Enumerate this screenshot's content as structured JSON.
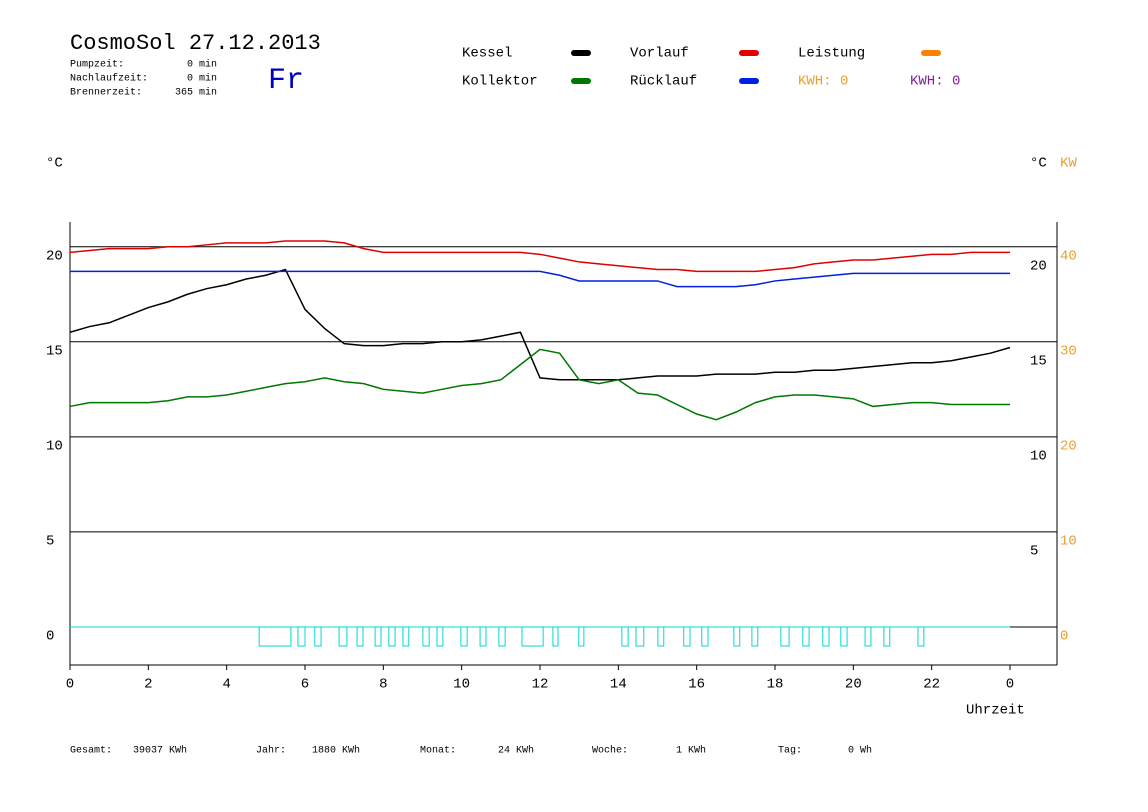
{
  "header": {
    "title": "CosmoSol 27.12.2013",
    "weekday": "Fr",
    "stats": [
      {
        "label": "Pumpzeit:",
        "value": "0 min"
      },
      {
        "label": "Nachlaufzeit:",
        "value": "0 min"
      },
      {
        "label": "Brennerzeit:",
        "value": "365 min"
      }
    ]
  },
  "footer": [
    {
      "label": "Gesamt:",
      "value": "39037 KWh"
    },
    {
      "label": "Jahr:",
      "value": "1880 KWh"
    },
    {
      "label": "Monat:",
      "value": "24 KWh"
    },
    {
      "label": "Woche:",
      "value": "1 KWh"
    },
    {
      "label": "Tag:",
      "value": "0 Wh"
    }
  ],
  "chart_data": {
    "type": "line",
    "y_label": "°C",
    "y2_label": "°C",
    "y3_label": "KW",
    "x_label": "Uhrzeit",
    "xlim": [
      0,
      25.2
    ],
    "xticks": [
      0,
      2,
      4,
      6,
      8,
      10,
      12,
      14,
      16,
      18,
      20,
      22,
      {
        "value": 24,
        "label": "0"
      }
    ],
    "ylim": [
      -2,
      21.3
    ],
    "yticks": [
      0,
      5,
      10,
      15,
      20
    ],
    "y_right_ticks": [
      5,
      10,
      15,
      20
    ],
    "y3lim": [
      -4,
      42.6
    ],
    "y3ticks": [
      0,
      10,
      20,
      30,
      40
    ],
    "y3color": "#e8a030",
    "grid": true,
    "x": [
      0,
      0.5,
      1,
      1.5,
      2,
      2.5,
      3,
      3.5,
      4,
      4.5,
      5,
      5.5,
      6,
      6.5,
      7,
      7.5,
      8,
      8.5,
      9,
      9.5,
      10,
      10.5,
      11,
      11.5,
      12,
      12.5,
      13,
      13.5,
      14,
      14.5,
      15,
      15.5,
      16,
      16.5,
      17,
      17.5,
      18,
      18.5,
      19,
      19.5,
      20,
      20.5,
      21,
      21.5,
      22,
      22.5,
      23,
      23.5,
      24
    ],
    "series": [
      {
        "name": "Kessel",
        "color": "#000000",
        "values": [
          15.5,
          15.8,
          16.0,
          16.4,
          16.8,
          17.1,
          17.5,
          17.8,
          18.0,
          18.3,
          18.5,
          18.8,
          16.7,
          15.7,
          14.9,
          14.8,
          14.8,
          14.9,
          14.9,
          15.0,
          15.0,
          15.1,
          15.3,
          15.5,
          13.1,
          13.0,
          13.0,
          13.0,
          13.0,
          13.1,
          13.2,
          13.2,
          13.2,
          13.3,
          13.3,
          13.3,
          13.4,
          13.4,
          13.5,
          13.5,
          13.6,
          13.7,
          13.8,
          13.9,
          13.9,
          14.0,
          14.2,
          14.4,
          14.7
        ]
      },
      {
        "name": "Vorlauf",
        "color": "#e00000",
        "values": [
          19.7,
          19.8,
          19.9,
          19.9,
          19.9,
          20.0,
          20.0,
          20.1,
          20.2,
          20.2,
          20.2,
          20.3,
          20.3,
          20.3,
          20.2,
          19.9,
          19.7,
          19.7,
          19.7,
          19.7,
          19.7,
          19.7,
          19.7,
          19.7,
          19.6,
          19.4,
          19.2,
          19.1,
          19.0,
          18.9,
          18.8,
          18.8,
          18.7,
          18.7,
          18.7,
          18.7,
          18.8,
          18.9,
          19.1,
          19.2,
          19.3,
          19.3,
          19.4,
          19.5,
          19.6,
          19.6,
          19.7,
          19.7,
          19.7
        ]
      },
      {
        "name": "Kollektor",
        "color": "#007800",
        "values": [
          11.6,
          11.8,
          11.8,
          11.8,
          11.8,
          11.9,
          12.1,
          12.1,
          12.2,
          12.4,
          12.6,
          12.8,
          12.9,
          13.1,
          12.9,
          12.8,
          12.5,
          12.4,
          12.3,
          12.5,
          12.7,
          12.8,
          13.0,
          13.8,
          14.6,
          14.4,
          13.0,
          12.8,
          13.0,
          12.3,
          12.2,
          11.7,
          11.2,
          10.9,
          11.3,
          11.8,
          12.1,
          12.2,
          12.2,
          12.1,
          12.0,
          11.6,
          11.7,
          11.8,
          11.8,
          11.7,
          11.7,
          11.7,
          11.7
        ]
      },
      {
        "name": "Rücklauf",
        "color": "#0020e0",
        "values": [
          18.7,
          18.7,
          18.7,
          18.7,
          18.7,
          18.7,
          18.7,
          18.7,
          18.7,
          18.7,
          18.7,
          18.7,
          18.7,
          18.7,
          18.7,
          18.7,
          18.7,
          18.7,
          18.7,
          18.7,
          18.7,
          18.7,
          18.7,
          18.7,
          18.7,
          18.5,
          18.2,
          18.2,
          18.2,
          18.2,
          18.2,
          17.9,
          17.9,
          17.9,
          17.9,
          18.0,
          18.2,
          18.3,
          18.4,
          18.5,
          18.6,
          18.6,
          18.6,
          18.6,
          18.6,
          18.6,
          18.6,
          18.6,
          18.6
        ]
      }
    ],
    "legend_extra": [
      {
        "name": "Leistung",
        "color": "#ff8000"
      }
    ],
    "kwh": [
      {
        "label": "KWH: 0",
        "color": "#e8a030"
      },
      {
        "label": "KWH: 0",
        "color": "#8020a0"
      }
    ],
    "pump": {
      "color": "#00d8d8",
      "low": -1,
      "intervals": [
        [
          4.83,
          5.64
        ],
        [
          5.82,
          6.0
        ],
        [
          6.25,
          6.41
        ],
        [
          6.87,
          7.07
        ],
        [
          7.33,
          7.48
        ],
        [
          7.79,
          7.94
        ],
        [
          8.14,
          8.3
        ],
        [
          8.5,
          8.65
        ],
        [
          9.01,
          9.17
        ],
        [
          9.37,
          9.52
        ],
        [
          9.98,
          10.14
        ],
        [
          10.47,
          10.62
        ],
        [
          10.95,
          11.11
        ],
        [
          11.54,
          12.08
        ],
        [
          12.33,
          12.46
        ],
        [
          12.99,
          13.12
        ],
        [
          14.09,
          14.25
        ],
        [
          14.45,
          14.65
        ],
        [
          15.01,
          15.16
        ],
        [
          15.67,
          15.83
        ],
        [
          16.13,
          16.29
        ],
        [
          16.95,
          17.1
        ],
        [
          17.41,
          17.56
        ],
        [
          18.15,
          18.36
        ],
        [
          18.71,
          18.87
        ],
        [
          19.22,
          19.38
        ],
        [
          19.68,
          19.84
        ],
        [
          20.3,
          20.45
        ],
        [
          20.78,
          20.93
        ],
        [
          21.65,
          21.8
        ]
      ]
    }
  }
}
